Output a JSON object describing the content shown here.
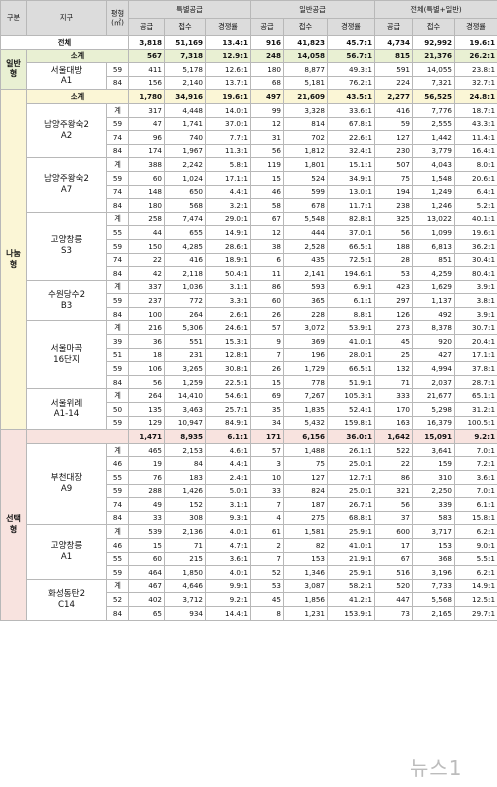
{
  "header": {
    "gubun": "구분",
    "jigu": "지구",
    "pyeong": "평형\n(㎡)",
    "groups": [
      "특별공급",
      "일반공급",
      "전체(특별+일반)"
    ],
    "sub": [
      "공급",
      "접수",
      "경쟁률"
    ]
  },
  "total": {
    "label": "전체",
    "v": [
      "3,818",
      "51,169",
      "13.4:1",
      "916",
      "41,823",
      "45.7:1",
      "4,734",
      "92,992",
      "19.6:1"
    ]
  },
  "categories": [
    {
      "name": "일반\n형",
      "cls": "g-il",
      "rowcls": "green",
      "subtotal": {
        "label": "소계",
        "v": [
          "567",
          "7,318",
          "12.9:1",
          "248",
          "14,058",
          "56.7:1",
          "815",
          "21,376",
          "26.2:1"
        ]
      },
      "districts": [
        {
          "name": "서울대방\nA1",
          "rows": [
            {
              "p": "59",
              "v": [
                "411",
                "5,178",
                "12.6:1",
                "180",
                "8,877",
                "49.3:1",
                "591",
                "14,055",
                "23.8:1"
              ]
            },
            {
              "p": "84",
              "v": [
                "156",
                "2,140",
                "13.7:1",
                "68",
                "5,181",
                "76.2:1",
                "224",
                "7,321",
                "32.7:1"
              ]
            }
          ]
        }
      ]
    },
    {
      "name": "나눔\n형",
      "cls": "g-na",
      "rowcls": "yellow",
      "subtotal": {
        "label": "소계",
        "v": [
          "1,780",
          "34,916",
          "19.6:1",
          "497",
          "21,609",
          "43.5:1",
          "2,277",
          "56,525",
          "24.8:1"
        ]
      },
      "districts": [
        {
          "name": "남양주왕숙2\nA2",
          "rows": [
            {
              "p": "계",
              "v": [
                "317",
                "4,448",
                "14.0:1",
                "99",
                "3,328",
                "33.6:1",
                "416",
                "7,776",
                "18.7:1"
              ]
            },
            {
              "p": "59",
              "v": [
                "47",
                "1,741",
                "37.0:1",
                "12",
                "814",
                "67.8:1",
                "59",
                "2,555",
                "43.3:1"
              ]
            },
            {
              "p": "74",
              "v": [
                "96",
                "740",
                "7.7:1",
                "31",
                "702",
                "22.6:1",
                "127",
                "1,442",
                "11.4:1"
              ]
            },
            {
              "p": "84",
              "v": [
                "174",
                "1,967",
                "11.3:1",
                "56",
                "1,812",
                "32.4:1",
                "230",
                "3,779",
                "16.4:1"
              ]
            }
          ]
        },
        {
          "name": "남양주왕숙2\nA7",
          "rows": [
            {
              "p": "계",
              "v": [
                "388",
                "2,242",
                "5.8:1",
                "119",
                "1,801",
                "15.1:1",
                "507",
                "4,043",
                "8.0:1"
              ]
            },
            {
              "p": "59",
              "v": [
                "60",
                "1,024",
                "17.1:1",
                "15",
                "524",
                "34.9:1",
                "75",
                "1,548",
                "20.6:1"
              ]
            },
            {
              "p": "74",
              "v": [
                "148",
                "650",
                "4.4:1",
                "46",
                "599",
                "13.0:1",
                "194",
                "1,249",
                "6.4:1"
              ]
            },
            {
              "p": "84",
              "v": [
                "180",
                "568",
                "3.2:1",
                "58",
                "678",
                "11.7:1",
                "238",
                "1,246",
                "5.2:1"
              ]
            }
          ]
        },
        {
          "name": "고양창릉\nS3",
          "rows": [
            {
              "p": "계",
              "v": [
                "258",
                "7,474",
                "29.0:1",
                "67",
                "5,548",
                "82.8:1",
                "325",
                "13,022",
                "40.1:1"
              ]
            },
            {
              "p": "55",
              "v": [
                "44",
                "655",
                "14.9:1",
                "12",
                "444",
                "37.0:1",
                "56",
                "1,099",
                "19.6:1"
              ]
            },
            {
              "p": "59",
              "v": [
                "150",
                "4,285",
                "28.6:1",
                "38",
                "2,528",
                "66.5:1",
                "188",
                "6,813",
                "36.2:1"
              ]
            },
            {
              "p": "74",
              "v": [
                "22",
                "416",
                "18.9:1",
                "6",
                "435",
                "72.5:1",
                "28",
                "851",
                "30.4:1"
              ]
            },
            {
              "p": "84",
              "v": [
                "42",
                "2,118",
                "50.4:1",
                "11",
                "2,141",
                "194.6:1",
                "53",
                "4,259",
                "80.4:1"
              ]
            }
          ]
        },
        {
          "name": "수원당수2\nB3",
          "rows": [
            {
              "p": "계",
              "v": [
                "337",
                "1,036",
                "3.1:1",
                "86",
                "593",
                "6.9:1",
                "423",
                "1,629",
                "3.9:1"
              ]
            },
            {
              "p": "59",
              "v": [
                "237",
                "772",
                "3.3:1",
                "60",
                "365",
                "6.1:1",
                "297",
                "1,137",
                "3.8:1"
              ]
            },
            {
              "p": "84",
              "v": [
                "100",
                "264",
                "2.6:1",
                "26",
                "228",
                "8.8:1",
                "126",
                "492",
                "3.9:1"
              ]
            }
          ]
        },
        {
          "name": "서울마곡\n16단지",
          "rows": [
            {
              "p": "계",
              "v": [
                "216",
                "5,306",
                "24.6:1",
                "57",
                "3,072",
                "53.9:1",
                "273",
                "8,378",
                "30.7:1"
              ]
            },
            {
              "p": "39",
              "v": [
                "36",
                "551",
                "15.3:1",
                "9",
                "369",
                "41.0:1",
                "45",
                "920",
                "20.4:1"
              ]
            },
            {
              "p": "51",
              "v": [
                "18",
                "231",
                "12.8:1",
                "7",
                "196",
                "28.0:1",
                "25",
                "427",
                "17.1:1"
              ]
            },
            {
              "p": "59",
              "v": [
                "106",
                "3,265",
                "30.8:1",
                "26",
                "1,729",
                "66.5:1",
                "132",
                "4,994",
                "37.8:1"
              ]
            },
            {
              "p": "84",
              "v": [
                "56",
                "1,259",
                "22.5:1",
                "15",
                "778",
                "51.9:1",
                "71",
                "2,037",
                "28.7:1"
              ]
            }
          ]
        },
        {
          "name": "서울위례\nA1-14",
          "rows": [
            {
              "p": "계",
              "v": [
                "264",
                "14,410",
                "54.6:1",
                "69",
                "7,267",
                "105.3:1",
                "333",
                "21,677",
                "65.1:1"
              ]
            },
            {
              "p": "50",
              "v": [
                "135",
                "3,463",
                "25.7:1",
                "35",
                "1,835",
                "52.4:1",
                "170",
                "5,298",
                "31.2:1"
              ]
            },
            {
              "p": "59",
              "v": [
                "129",
                "10,947",
                "84.9:1",
                "34",
                "5,432",
                "159.8:1",
                "163",
                "16,379",
                "100.5:1"
              ]
            }
          ]
        }
      ]
    },
    {
      "name": "선택\n형",
      "cls": "g-se",
      "rowcls": "pink",
      "subtotal": {
        "label": "",
        "v": [
          "1,471",
          "8,935",
          "6.1:1",
          "171",
          "6,156",
          "36.0:1",
          "1,642",
          "15,091",
          "9.2:1"
        ]
      },
      "districts": [
        {
          "name": "부천대장\nA9",
          "rows": [
            {
              "p": "계",
              "v": [
                "465",
                "2,153",
                "4.6:1",
                "57",
                "1,488",
                "26.1:1",
                "522",
                "3,641",
                "7.0:1"
              ]
            },
            {
              "p": "46",
              "v": [
                "19",
                "84",
                "4.4:1",
                "3",
                "75",
                "25.0:1",
                "22",
                "159",
                "7.2:1"
              ]
            },
            {
              "p": "55",
              "v": [
                "76",
                "183",
                "2.4:1",
                "10",
                "127",
                "12.7:1",
                "86",
                "310",
                "3.6:1"
              ]
            },
            {
              "p": "59",
              "v": [
                "288",
                "1,426",
                "5.0:1",
                "33",
                "824",
                "25.0:1",
                "321",
                "2,250",
                "7.0:1"
              ]
            },
            {
              "p": "74",
              "v": [
                "49",
                "152",
                "3.1:1",
                "7",
                "187",
                "26.7:1",
                "56",
                "339",
                "6.1:1"
              ]
            },
            {
              "p": "84",
              "v": [
                "33",
                "308",
                "9.3:1",
                "4",
                "275",
                "68.8:1",
                "37",
                "583",
                "15.8:1"
              ]
            }
          ]
        },
        {
          "name": "고양창릉\nA1",
          "rows": [
            {
              "p": "계",
              "v": [
                "539",
                "2,136",
                "4.0:1",
                "61",
                "1,581",
                "25.9:1",
                "600",
                "3,717",
                "6.2:1"
              ]
            },
            {
              "p": "46",
              "v": [
                "15",
                "71",
                "4.7:1",
                "2",
                "82",
                "41.0:1",
                "17",
                "153",
                "9.0:1"
              ]
            },
            {
              "p": "55",
              "v": [
                "60",
                "215",
                "3.6:1",
                "7",
                "153",
                "21.9:1",
                "67",
                "368",
                "5.5:1"
              ]
            },
            {
              "p": "59",
              "v": [
                "464",
                "1,850",
                "4.0:1",
                "52",
                "1,346",
                "25.9:1",
                "516",
                "3,196",
                "6.2:1"
              ]
            }
          ]
        },
        {
          "name": "화성동탄2\nC14",
          "rows": [
            {
              "p": "계",
              "v": [
                "467",
                "4,646",
                "9.9:1",
                "53",
                "3,087",
                "58.2:1",
                "520",
                "7,733",
                "14.9:1"
              ]
            },
            {
              "p": "52",
              "v": [
                "402",
                "3,712",
                "9.2:1",
                "45",
                "1,856",
                "41.2:1",
                "447",
                "5,568",
                "12.5:1"
              ]
            },
            {
              "p": "84",
              "v": [
                "65",
                "934",
                "14.4:1",
                "8",
                "1,231",
                "153.9:1",
                "73",
                "2,165",
                "29.7:1"
              ]
            }
          ]
        }
      ]
    }
  ],
  "watermark": "뉴스1"
}
